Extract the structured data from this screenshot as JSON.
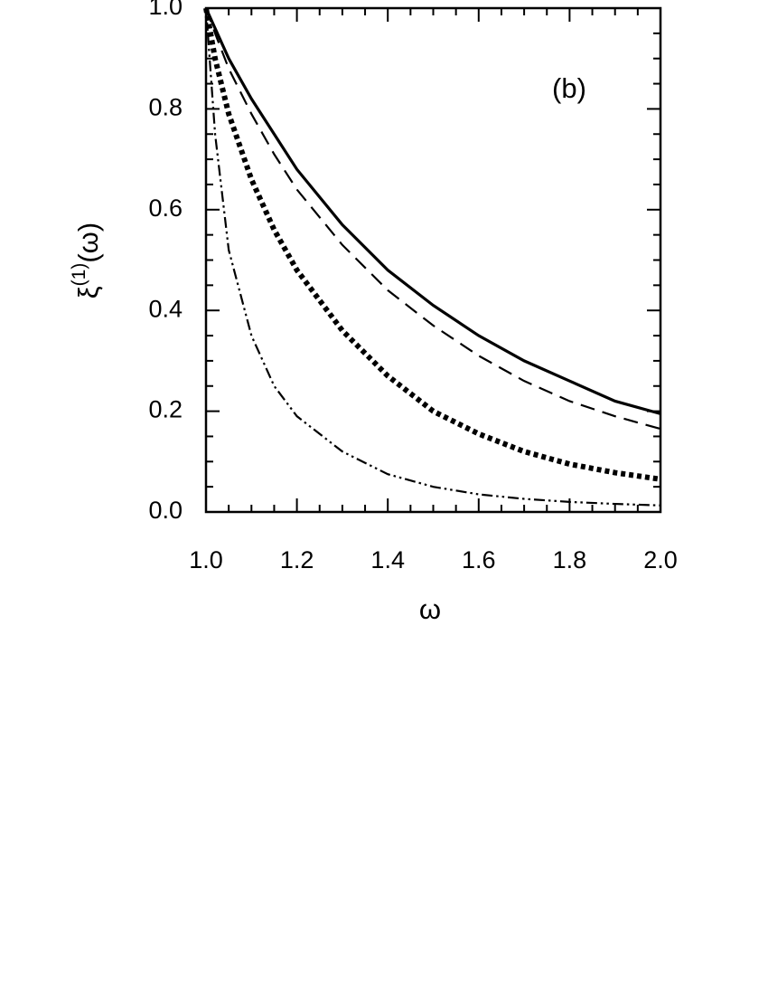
{
  "chart_data": {
    "type": "line",
    "xlabel": "ω",
    "ylabel": [
      "ξ",
      "(1)",
      "(ω)"
    ],
    "annotation": "(b)",
    "x": [
      1.0,
      1.02,
      1.05,
      1.1,
      1.15,
      1.2,
      1.3,
      1.4,
      1.5,
      1.6,
      1.7,
      1.8,
      1.9,
      2.0
    ],
    "series": [
      {
        "color": "#000000",
        "dash": "solid",
        "values": [
          1.0,
          0.96,
          0.9,
          0.82,
          0.75,
          0.68,
          0.57,
          0.48,
          0.41,
          0.35,
          0.3,
          0.26,
          0.22,
          0.195
        ]
      },
      {
        "color": "#000000",
        "dash": "dashed",
        "values": [
          1.0,
          0.95,
          0.88,
          0.79,
          0.71,
          0.64,
          0.53,
          0.44,
          0.37,
          0.31,
          0.26,
          0.22,
          0.19,
          0.165
        ]
      },
      {
        "color": "#000000",
        "dash": "dotted",
        "values": [
          1.0,
          0.9,
          0.79,
          0.66,
          0.56,
          0.48,
          0.36,
          0.27,
          0.2,
          0.155,
          0.12,
          0.095,
          0.078,
          0.065
        ]
      },
      {
        "color": "#000000",
        "dash": "dashdotdot",
        "values": [
          1.0,
          0.75,
          0.52,
          0.35,
          0.25,
          0.19,
          0.12,
          0.075,
          0.05,
          0.035,
          0.026,
          0.02,
          0.016,
          0.013
        ]
      }
    ],
    "xlim": [
      1.0,
      2.0
    ],
    "ylim": [
      0.0,
      1.0
    ],
    "xticks": [
      {
        "value": 1.0,
        "label": "1.0"
      },
      1.2,
      1.4,
      1.6,
      1.8,
      {
        "value": 2.0,
        "label": "2.0"
      }
    ],
    "yticks": [
      {
        "value": 0.0,
        "label": "0.0"
      },
      0.2,
      0.4,
      0.6,
      0.8,
      {
        "value": 1.0,
        "label": "1.0"
      }
    ],
    "xminorticks": [
      1.05,
      1.1,
      1.15,
      1.25,
      1.3,
      1.35,
      1.45,
      1.5,
      1.55,
      1.65,
      1.7,
      1.75,
      1.85,
      1.9,
      1.95
    ],
    "yminorticks": [
      0.05,
      0.1,
      0.15,
      0.25,
      0.3,
      0.35,
      0.45,
      0.5,
      0.55,
      0.65,
      0.7,
      0.75,
      0.85,
      0.9,
      0.95
    ],
    "grid": false
  }
}
